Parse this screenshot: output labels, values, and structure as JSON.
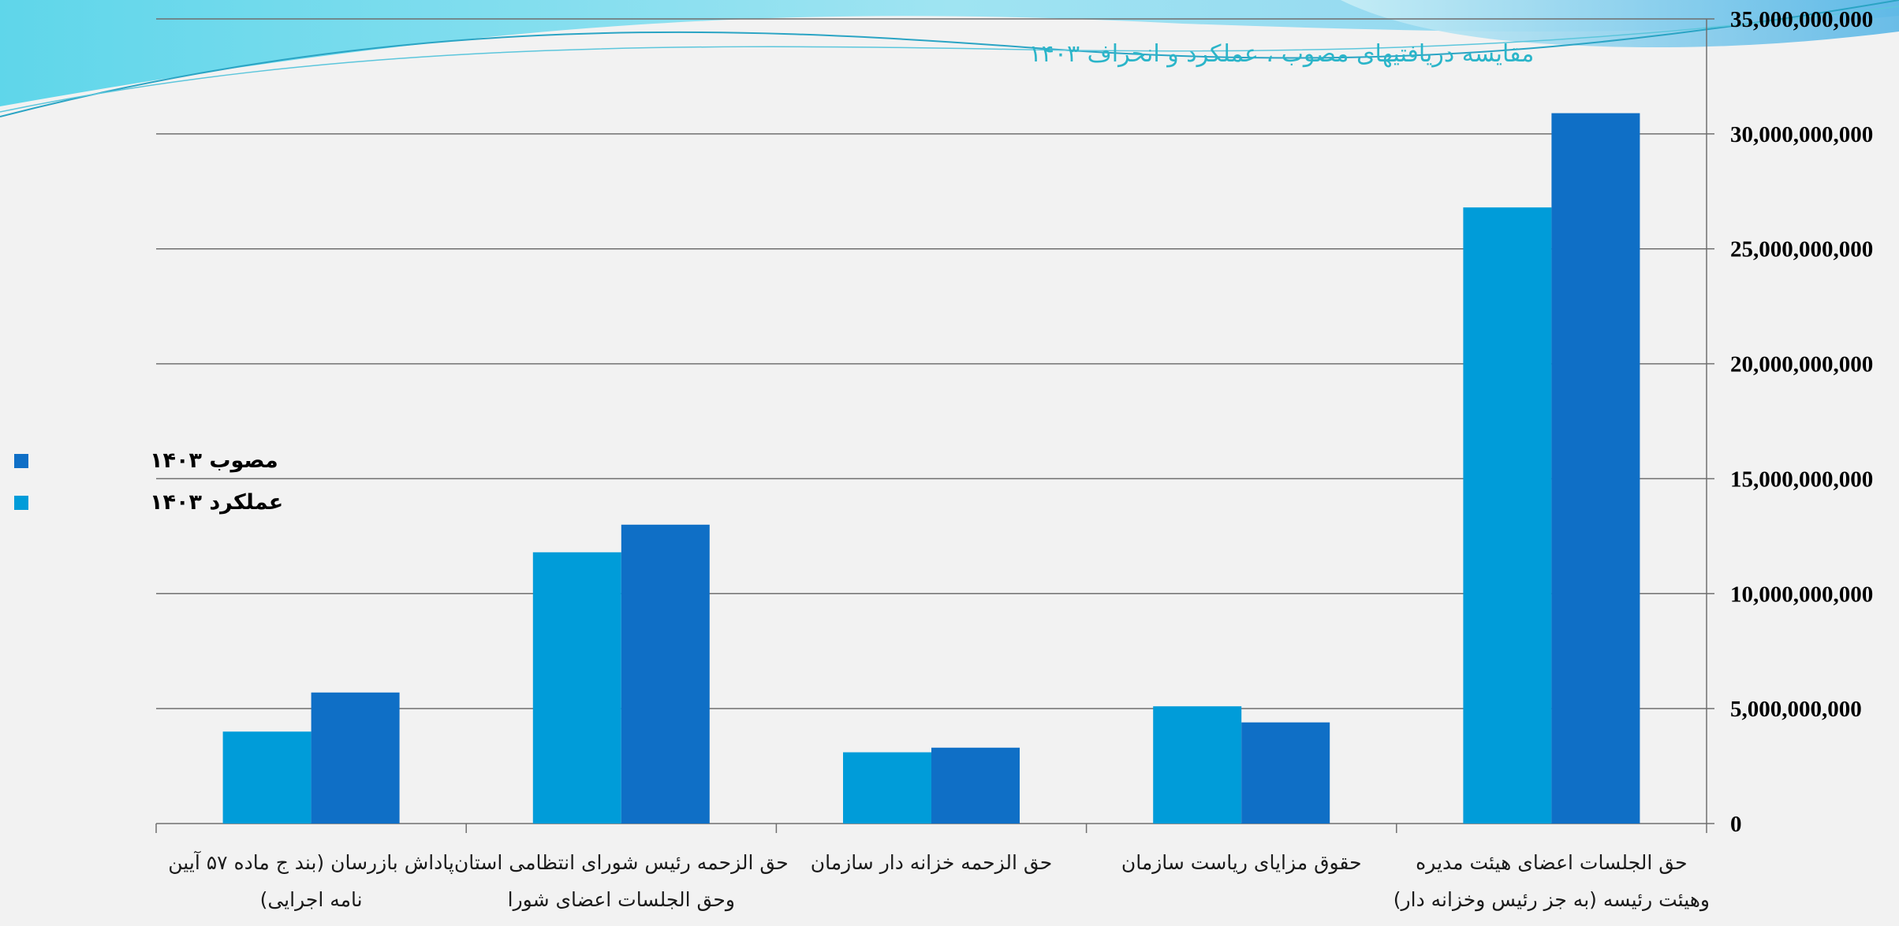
{
  "slide": {
    "title": "مقایسه دریافتیهای مصوب ، عملکرد و انحراف ۱۴۰۳",
    "colors": {
      "background": "#f2f2f2",
      "title": "#2bb5c9",
      "wave_light": "#7fd8ec",
      "wave_dark": "#3aa7d6"
    }
  },
  "chart_data": {
    "type": "bar",
    "title": "",
    "xlabel": "",
    "ylabel": "",
    "ylim": [
      0,
      35000000000
    ],
    "y_ticks": [
      0,
      5000000000,
      10000000000,
      15000000000,
      20000000000,
      25000000000,
      30000000000,
      35000000000
    ],
    "y_tick_labels": [
      "0",
      "5,000,000,000",
      "10,000,000,000",
      "15,000,000,000",
      "20,000,000,000",
      "25,000,000,000",
      "30,000,000,000",
      "35,000,000,000"
    ],
    "grid": true,
    "category_order": "right-to-left",
    "legend_position": "left",
    "categories": [
      [
        "حق الجلسات اعضای هیئت مدیره",
        "وهیئت رئیسه  (به جز رئیس وخزانه دار)"
      ],
      [
        "حقوق مزایای ریاست سازمان"
      ],
      [
        "حق الزحمه خزانه دار سازمان"
      ],
      [
        "حق الزحمه رئیس شورای انتظامی استان",
        "وحق الجلسات اعضای شورا"
      ],
      [
        "پاداش بازرسان (بند ج ماده ۵۷ آیین",
        "نامه اجرایی)"
      ]
    ],
    "series": [
      {
        "name": "عملکرد ۱۴۰۳",
        "color": "#009cd9",
        "values": [
          26800000000,
          5100000000,
          3100000000,
          11800000000,
          4000000000
        ]
      },
      {
        "name": "مصوب ۱۴۰۳",
        "color": "#0f6fc6",
        "values": [
          30900000000,
          4400000000,
          3300000000,
          13000000000,
          5700000000
        ]
      }
    ],
    "legend": [
      {
        "name": "مصوب ۱۴۰۳",
        "color": "#0f6fc6"
      },
      {
        "name": "عملکرد ۱۴۰۳",
        "color": "#009cd9"
      }
    ]
  }
}
